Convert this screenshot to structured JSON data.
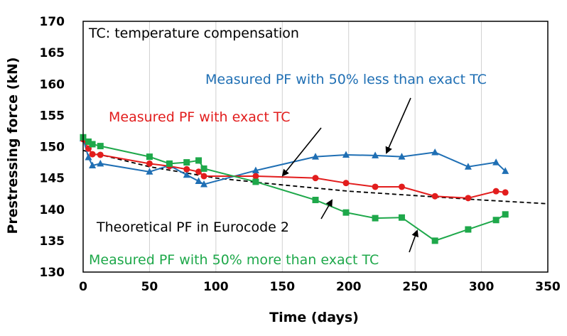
{
  "chart_data": {
    "type": "line",
    "title": "",
    "xlabel": "Time (days)",
    "ylabel": "Prestressing force (kN)",
    "xlim": [
      0,
      350
    ],
    "ylim": [
      130,
      170
    ],
    "xticks": [
      0,
      50,
      100,
      150,
      200,
      250,
      300,
      350
    ],
    "yticks": [
      130,
      135,
      140,
      145,
      150,
      155,
      160,
      165,
      170
    ],
    "grid": "vertical",
    "series": [
      {
        "name": "Measured PF with 50% less than exact TC",
        "color": "#1f6fb4",
        "marker": "triangle",
        "x": [
          0,
          4,
          7,
          13,
          50,
          65,
          78,
          87,
          91,
          130,
          175,
          198,
          220,
          240,
          265,
          290,
          311,
          318
        ],
        "values": [
          151.3,
          148.3,
          147.0,
          147.3,
          146.0,
          147.0,
          145.5,
          144.5,
          144.0,
          146.2,
          148.4,
          148.7,
          148.6,
          148.4,
          149.1,
          146.8,
          147.5,
          146.1
        ]
      },
      {
        "name": "Measured PF with exact TC",
        "color": "#e21d1d",
        "marker": "circle",
        "x": [
          0,
          4,
          7,
          13,
          50,
          65,
          78,
          87,
          91,
          130,
          175,
          198,
          220,
          240,
          265,
          290,
          311,
          318
        ],
        "values": [
          151.2,
          149.7,
          148.8,
          148.7,
          147.3,
          146.9,
          146.4,
          146.0,
          145.3,
          145.3,
          145.0,
          144.2,
          143.6,
          143.6,
          142.1,
          141.8,
          142.9,
          142.7
        ]
      },
      {
        "name": "Measured PF with 50% more than exact TC",
        "color": "#1ea84a",
        "marker": "square",
        "x": [
          0,
          4,
          7,
          13,
          50,
          65,
          78,
          87,
          91,
          130,
          175,
          198,
          220,
          240,
          265,
          290,
          311,
          318
        ],
        "values": [
          151.5,
          150.8,
          150.4,
          150.1,
          148.4,
          147.3,
          147.5,
          147.8,
          146.5,
          144.4,
          141.5,
          139.5,
          138.6,
          138.7,
          135.0,
          136.8,
          138.3,
          139.2
        ]
      },
      {
        "name": "Theoretical PF in Eurocode 2",
        "color": "#000000",
        "style": "dashed",
        "x": [
          0,
          50,
          100,
          150,
          200,
          250,
          300,
          350
        ],
        "values": [
          149.4,
          146.8,
          145.0,
          143.9,
          142.9,
          142.2,
          141.5,
          140.9
        ]
      }
    ],
    "annotations": [
      {
        "text": "TC: temperature compensation",
        "color": "#000000"
      },
      {
        "text": "Measured PF with 50% less than exact TC",
        "color": "#1f6fb4"
      },
      {
        "text": "Measured PF with exact TC",
        "color": "#e21d1d"
      },
      {
        "text": "Theoretical PF in Eurocode 2",
        "color": "#000000"
      },
      {
        "text": "Measured PF with 50% more than exact TC",
        "color": "#1ea84a"
      }
    ]
  }
}
